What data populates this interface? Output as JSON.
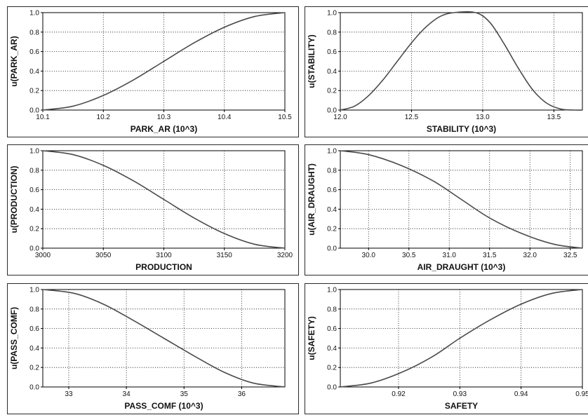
{
  "chart_data": [
    {
      "type": "line",
      "xlabel": "PARK_AR (10^3)",
      "ylabel": "u(PARK_AR)",
      "xlim": [
        10.1,
        10.5
      ],
      "ylim": [
        0,
        1
      ],
      "x_ticks": [
        "10.1",
        "10.2",
        "10.3",
        "10.4",
        "10.5"
      ],
      "x_tick_values": [
        10.1,
        10.2,
        10.3,
        10.4,
        10.5
      ],
      "y_ticks": [
        "0.0",
        "0.2",
        "0.4",
        "0.6",
        "0.8",
        "1.0"
      ],
      "grid": true,
      "series": [
        {
          "x": [
            10.1,
            10.15,
            10.2,
            10.25,
            10.3,
            10.35,
            10.4,
            10.45,
            10.5
          ],
          "y": [
            0.0,
            0.04,
            0.15,
            0.31,
            0.5,
            0.69,
            0.85,
            0.96,
            1.0
          ]
        }
      ]
    },
    {
      "type": "line",
      "xlabel": "STABILITY (10^3)",
      "ylabel": "u(STABILITY)",
      "xlim": [
        12.0,
        13.7
      ],
      "ylim": [
        0,
        1
      ],
      "x_ticks": [
        "12.0",
        "12.5",
        "13.0",
        "13.5"
      ],
      "x_tick_values": [
        12.0,
        12.5,
        13.0,
        13.5
      ],
      "y_ticks": [
        "0.0",
        "0.2",
        "0.4",
        "0.6",
        "0.8",
        "1.0"
      ],
      "grid": true,
      "series": [
        {
          "x": [
            12.0,
            12.1,
            12.2,
            12.3,
            12.4,
            12.5,
            12.6,
            12.7,
            12.8,
            12.95,
            13.05,
            13.15,
            13.25,
            13.35,
            13.45,
            13.55,
            13.65,
            13.7
          ],
          "y": [
            0.0,
            0.04,
            0.15,
            0.31,
            0.5,
            0.69,
            0.85,
            0.96,
            1.0,
            1.0,
            0.9,
            0.68,
            0.43,
            0.21,
            0.07,
            0.01,
            0.0,
            0.0
          ]
        }
      ]
    },
    {
      "type": "line",
      "xlabel": "PRODUCTION",
      "ylabel": "u(PRODUCTION)",
      "xlim": [
        3000,
        3200
      ],
      "ylim": [
        0,
        1
      ],
      "x_ticks": [
        "3000",
        "3050",
        "3100",
        "3150",
        "3200"
      ],
      "x_tick_values": [
        3000,
        3050,
        3100,
        3150,
        3200
      ],
      "y_ticks": [
        "0.0",
        "0.2",
        "0.4",
        "0.6",
        "0.8",
        "1.0"
      ],
      "grid": true,
      "series": [
        {
          "x": [
            3000,
            3025,
            3050,
            3075,
            3100,
            3125,
            3150,
            3175,
            3200
          ],
          "y": [
            1.0,
            0.96,
            0.85,
            0.69,
            0.5,
            0.31,
            0.15,
            0.04,
            0.0
          ]
        }
      ]
    },
    {
      "type": "line",
      "xlabel": "AIR_DRAUGHT (10^3)",
      "ylabel": "u(AIR_DRAUGHT)",
      "xlim": [
        29.65,
        32.65
      ],
      "ylim": [
        0,
        1
      ],
      "x_ticks": [
        "30.0",
        "30.5",
        "31.0",
        "31.5",
        "32.0",
        "32.5"
      ],
      "x_tick_values": [
        30.0,
        30.5,
        31.0,
        31.5,
        32.0,
        32.5
      ],
      "y_ticks": [
        "0.0",
        "0.2",
        "0.4",
        "0.6",
        "0.8",
        "1.0"
      ],
      "grid": true,
      "series": [
        {
          "x": [
            29.65,
            30.0,
            30.4,
            30.8,
            31.15,
            31.5,
            31.9,
            32.3,
            32.65
          ],
          "y": [
            1.0,
            0.96,
            0.85,
            0.69,
            0.5,
            0.31,
            0.15,
            0.04,
            0.0
          ]
        }
      ]
    },
    {
      "type": "line",
      "xlabel": "PASS_COMF (10^3)",
      "ylabel": "u(PASS_COMF)",
      "xlim": [
        32.55,
        36.75
      ],
      "ylim": [
        0,
        1
      ],
      "x_ticks": [
        "33",
        "34",
        "35",
        "36"
      ],
      "x_tick_values": [
        33,
        34,
        35,
        36
      ],
      "y_ticks": [
        "0.0",
        "0.2",
        "0.4",
        "0.6",
        "0.8",
        "1.0"
      ],
      "grid": true,
      "series": [
        {
          "x": [
            32.55,
            33.1,
            33.6,
            34.1,
            34.65,
            35.2,
            35.7,
            36.2,
            36.75
          ],
          "y": [
            1.0,
            0.96,
            0.85,
            0.69,
            0.5,
            0.31,
            0.15,
            0.04,
            0.0
          ]
        }
      ]
    },
    {
      "type": "line",
      "xlabel": "SAFETY",
      "ylabel": "u(SAFETY)",
      "xlim": [
        0.9105,
        0.95
      ],
      "ylim": [
        0,
        1
      ],
      "x_ticks": [
        "0.92",
        "0.93",
        "0.94",
        "0.95"
      ],
      "x_tick_values": [
        0.92,
        0.93,
        0.94,
        0.95
      ],
      "y_ticks": [
        "0.0",
        "0.2",
        "0.4",
        "0.6",
        "0.8",
        "1.0"
      ],
      "grid": true,
      "series": [
        {
          "x": [
            0.9105,
            0.9155,
            0.9205,
            0.9255,
            0.93,
            0.935,
            0.94,
            0.945,
            0.95
          ],
          "y": [
            0.0,
            0.04,
            0.15,
            0.31,
            0.5,
            0.69,
            0.85,
            0.96,
            1.0
          ]
        }
      ]
    }
  ]
}
